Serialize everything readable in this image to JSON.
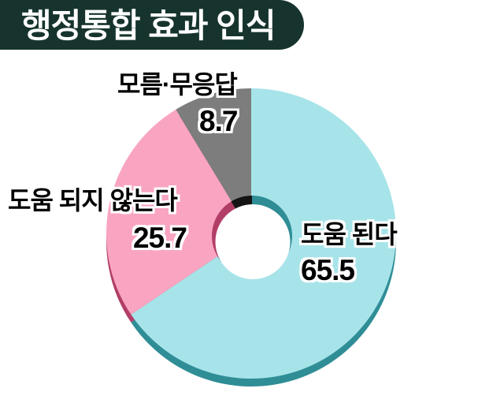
{
  "page": {
    "background_color": "#ffffff"
  },
  "header": {
    "title": "행정통합 효과 인식",
    "bg_color": "#16342d",
    "text_color": "#ffffff"
  },
  "chart_data": {
    "type": "pie",
    "subtype": "3d-donut",
    "title": "행정통합 효과 인식",
    "unit": "%",
    "start_angle_deg": 0,
    "direction": "clockwise",
    "legend_position": "none",
    "hole_color": "#ffffff",
    "segments": [
      {
        "label": "도움 된다",
        "value": 65.5,
        "color": "#a7e4e9",
        "side_color": "#2f8d96"
      },
      {
        "label": "도움 되지 않는다",
        "value": 25.7,
        "color": "#f9a5c1",
        "side_color": "#b23e68"
      },
      {
        "label": "모름·무응답",
        "value": 8.7,
        "color": "#7d7d7d",
        "side_color": "#141414"
      }
    ]
  }
}
